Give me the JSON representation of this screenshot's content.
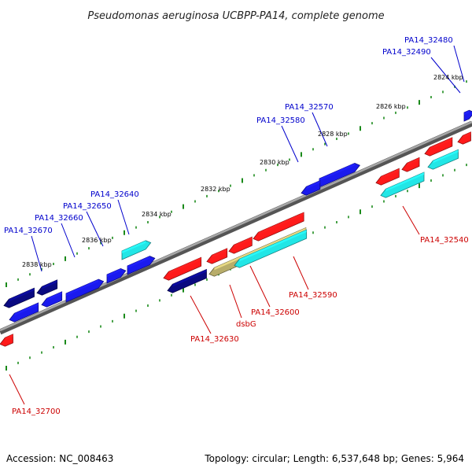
{
  "title": "Pseudomonas aeruginosa UCBPP-PA14, complete genome",
  "footer": {
    "accession": "Accession: NC_008463",
    "summary": "Topology: circular; Length: 6,537,648 bp; Genes: 5,964"
  },
  "colors": {
    "backbone": "#7a7a7a",
    "tick": "#1a8a1a",
    "forward_label": "#0000cc",
    "reverse_label": "#cc0000",
    "gene_red": "#ff1a1a",
    "gene_blue": "#1a1aee",
    "gene_navy": "#0a0a80",
    "gene_cyan": "#22e6e6",
    "gene_tan": "#b8ad6a"
  },
  "ruler_labels": [
    "2824 kbp",
    "2826 kbp",
    "2828 kbp",
    "2830 kbp",
    "2832 kbp",
    "2834 kbp",
    "2836 kbp",
    "2838 kbp"
  ],
  "labels_forward": [
    "PA14_32480",
    "PA14_32490",
    "PA14_32570",
    "PA14_32580",
    "PA14_32640",
    "PA14_32650",
    "PA14_32660",
    "PA14_32670"
  ],
  "labels_reverse": [
    "PA14_32540",
    "PA14_32590",
    "PA14_32600",
    "dsbG",
    "PA14_32630",
    "PA14_32700"
  ]
}
